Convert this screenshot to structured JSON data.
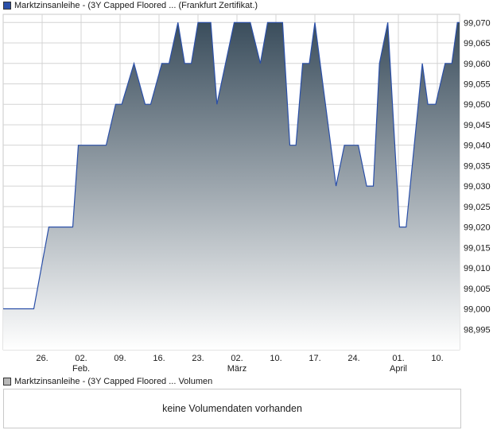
{
  "price_legend": {
    "text": "Marktzinsanleihe - (3Y Capped Floored ... (Frankfurt Zertifikat.)",
    "swatch_color": "#2a4fa8"
  },
  "volume_legend": {
    "text": "Marktzinsanleihe - (3Y Capped Floored ... Volumen",
    "swatch_color": "#b8b8b8"
  },
  "volume_panel": {
    "message": "keine Volumendaten vorhanden"
  },
  "colors": {
    "line": "#2a4fa8",
    "fill_top": "#3a4d5c",
    "fill_bottom": "#ffffff",
    "grid": "#d4d4d4",
    "frame": "#c9c9c9"
  },
  "chart_data": {
    "type": "area",
    "ylim": [
      98.99,
      99.072
    ],
    "y_ticks": [
      98.995,
      99.0,
      99.005,
      99.01,
      99.015,
      99.02,
      99.025,
      99.03,
      99.035,
      99.04,
      99.045,
      99.05,
      99.055,
      99.06,
      99.065,
      99.07
    ],
    "y_tick_labels": [
      "98,995",
      "99,000",
      "99,005",
      "99,010",
      "99,015",
      "99,020",
      "99,025",
      "99,030",
      "99,035",
      "99,040",
      "99,045",
      "99,050",
      "99,055",
      "99,060",
      "99,065",
      "99,070"
    ],
    "x_ticks": [
      {
        "day": 4,
        "label": "26.",
        "month_label": ""
      },
      {
        "day": 11,
        "label": "02.",
        "month_label": "Feb."
      },
      {
        "day": 18,
        "label": "09.",
        "month_label": ""
      },
      {
        "day": 25,
        "label": "16.",
        "month_label": ""
      },
      {
        "day": 32,
        "label": "23.",
        "month_label": ""
      },
      {
        "day": 39,
        "label": "02.",
        "month_label": "März"
      },
      {
        "day": 46,
        "label": "10.",
        "month_label": ""
      },
      {
        "day": 53,
        "label": "17.",
        "month_label": ""
      },
      {
        "day": 60,
        "label": "24.",
        "month_label": ""
      },
      {
        "day": 68,
        "label": "01.",
        "month_label": "April"
      },
      {
        "day": 75,
        "label": "10.",
        "month_label": ""
      }
    ],
    "x_range": [
      -3,
      79
    ],
    "points": [
      [
        -3,
        99.0
      ],
      [
        2.5,
        99.0
      ],
      [
        5.2,
        99.02
      ],
      [
        9.5,
        99.02
      ],
      [
        10.5,
        99.04
      ],
      [
        15.5,
        99.04
      ],
      [
        17.2,
        99.05
      ],
      [
        18.3,
        99.05
      ],
      [
        20.5,
        99.06
      ],
      [
        22.5,
        99.05
      ],
      [
        23.5,
        99.05
      ],
      [
        25.5,
        99.06
      ],
      [
        26.8,
        99.06
      ],
      [
        28.4,
        99.07
      ],
      [
        29.6,
        99.06
      ],
      [
        30.8,
        99.06
      ],
      [
        32.0,
        99.07
      ],
      [
        34.3,
        99.07
      ],
      [
        35.4,
        99.05
      ],
      [
        38.5,
        99.07
      ],
      [
        41.4,
        99.07
      ],
      [
        43.2,
        99.06
      ],
      [
        44.5,
        99.07
      ],
      [
        47.2,
        99.07
      ],
      [
        48.5,
        99.04
      ],
      [
        49.6,
        99.04
      ],
      [
        50.8,
        99.06
      ],
      [
        52.0,
        99.06
      ],
      [
        53.0,
        99.07
      ],
      [
        56.8,
        99.03
      ],
      [
        58.3,
        99.04
      ],
      [
        60.8,
        99.04
      ],
      [
        62.3,
        99.03
      ],
      [
        63.5,
        99.03
      ],
      [
        64.6,
        99.06
      ],
      [
        66.1,
        99.07
      ],
      [
        68.2,
        99.02
      ],
      [
        69.4,
        99.02
      ],
      [
        72.3,
        99.06
      ],
      [
        73.3,
        99.05
      ],
      [
        74.7,
        99.05
      ],
      [
        76.4,
        99.06
      ],
      [
        77.6,
        99.06
      ],
      [
        78.6,
        99.07
      ],
      [
        79,
        99.07
      ]
    ]
  }
}
